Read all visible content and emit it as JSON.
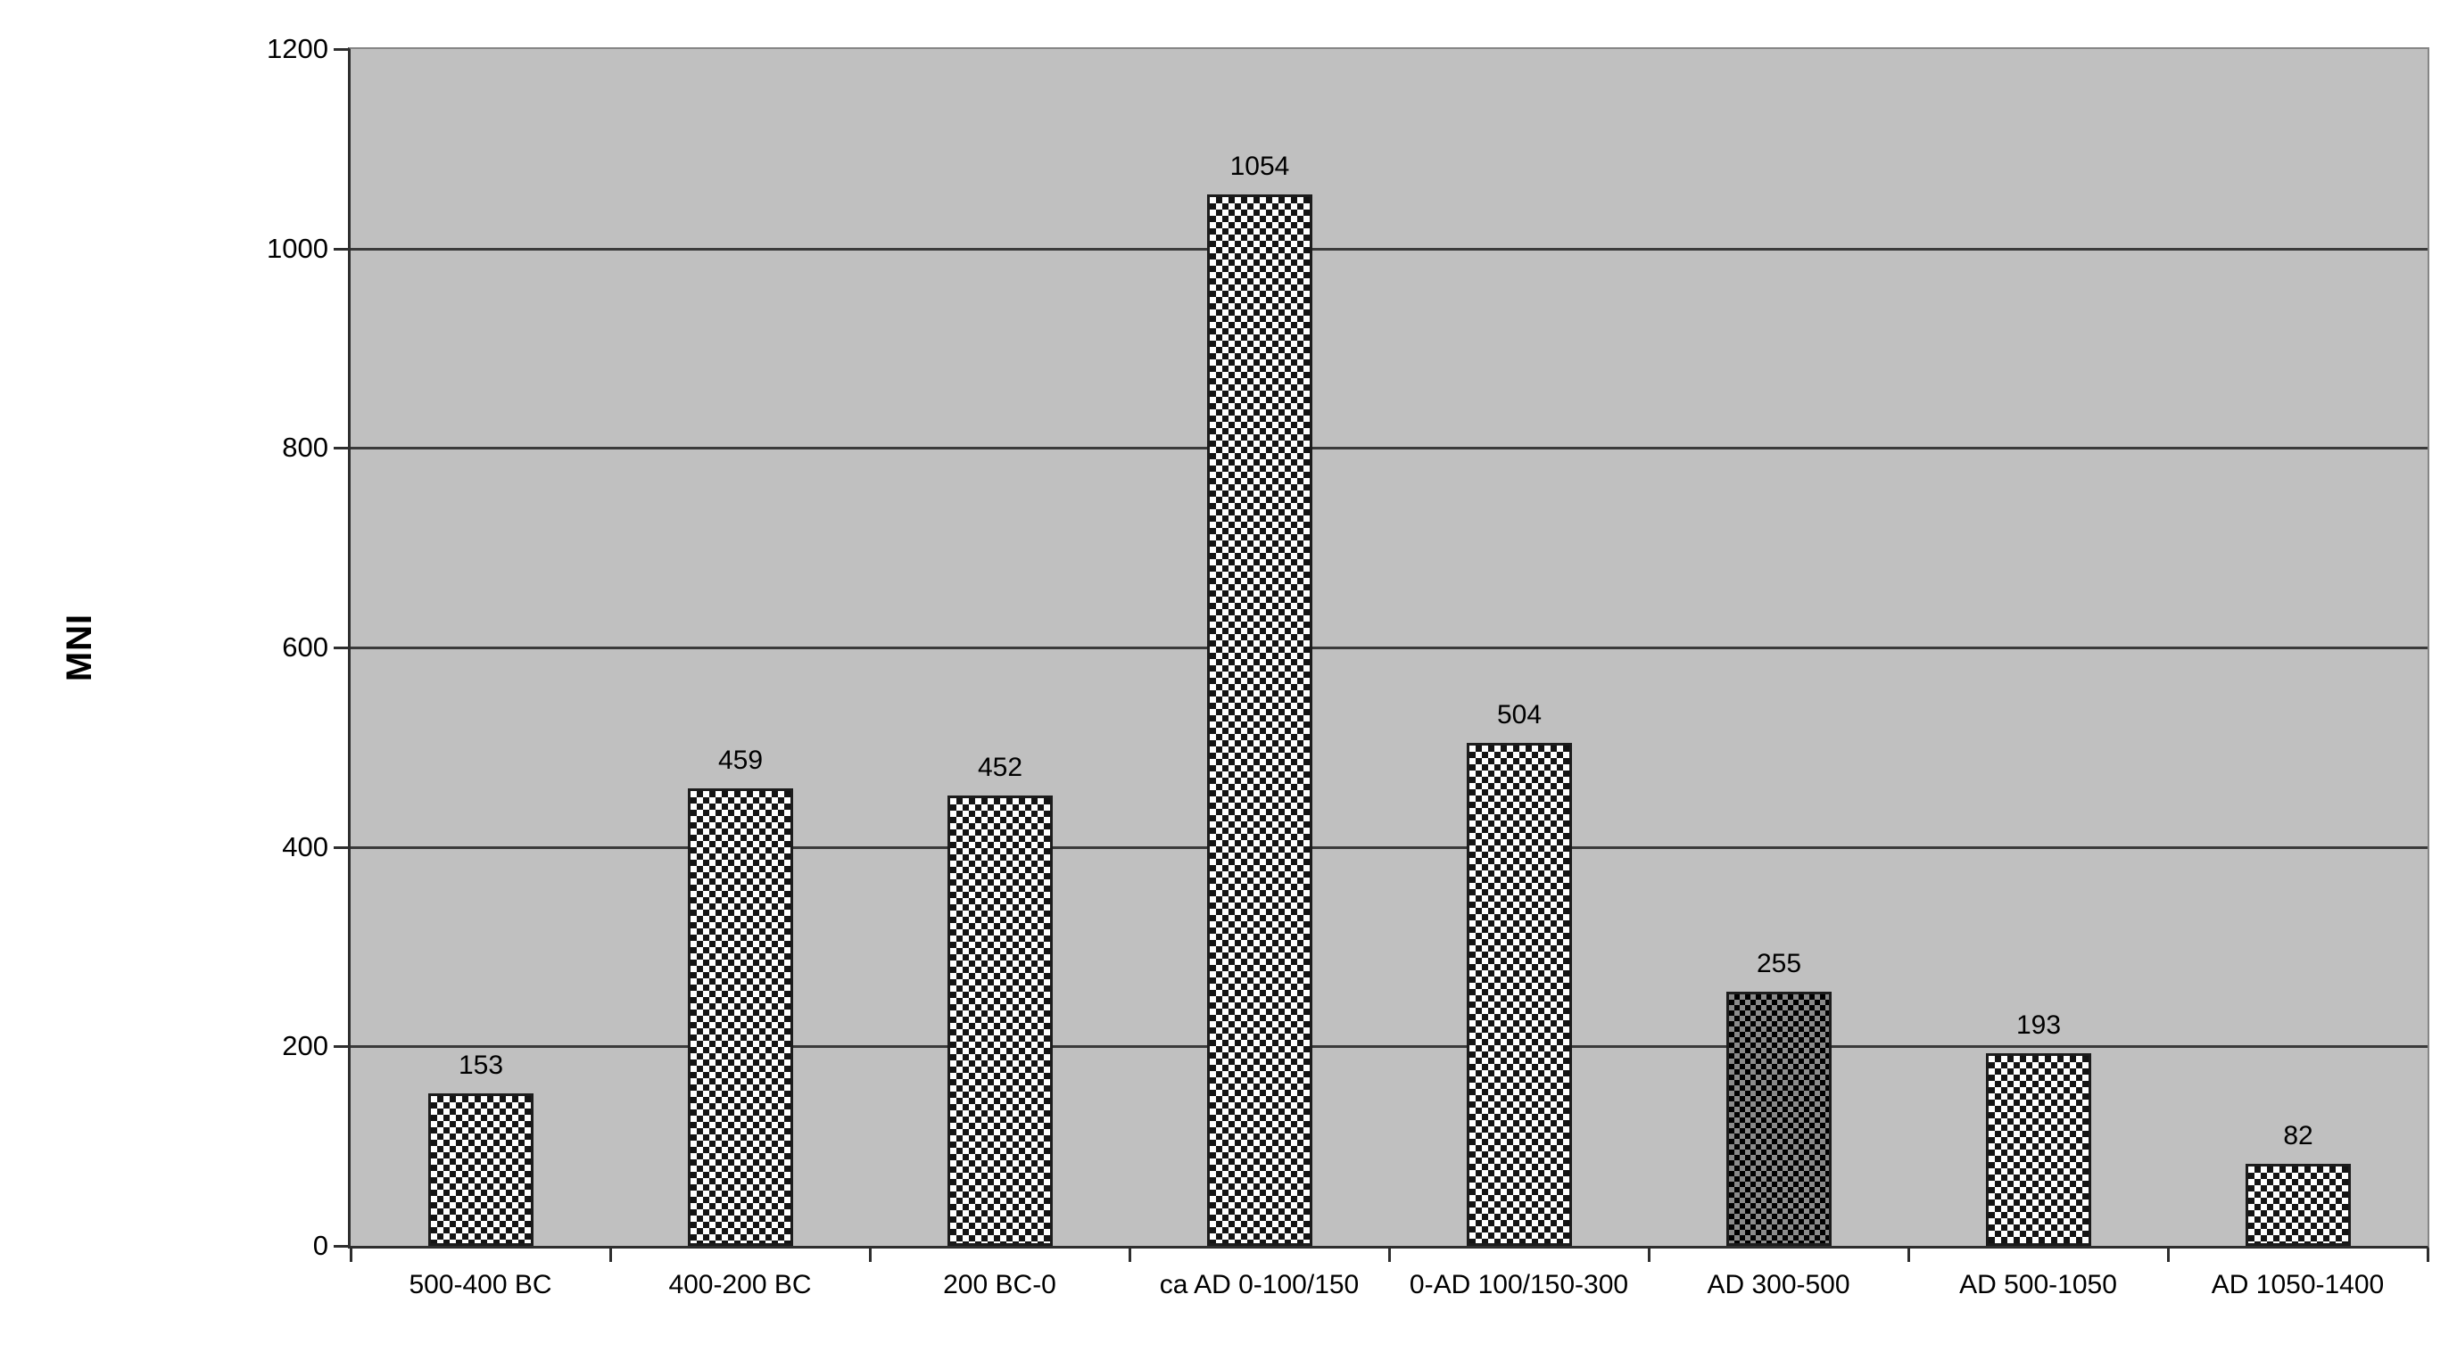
{
  "chart_data": {
    "type": "bar",
    "title": "",
    "xlabel": "",
    "ylabel": "MNI",
    "categories": [
      "500-400 BC",
      "400-200 BC",
      "200 BC-0",
      "ca AD 0-100/150",
      "0-AD 100/150-300",
      "AD 300-500",
      "AD 500-1050",
      "AD 1050-1400"
    ],
    "values": [
      153,
      459,
      452,
      1054,
      504,
      255,
      193,
      82
    ],
    "data_labels": [
      "153",
      "459",
      "452",
      "1054",
      "504",
      "255",
      "193",
      "82"
    ],
    "ylim": [
      0,
      1200
    ],
    "ytick_step": 200,
    "yticks": [
      0,
      200,
      400,
      600,
      800,
      1000,
      1200
    ],
    "grid": "horizontal",
    "legend": "none",
    "highlight_bar_index": 5,
    "colors": {
      "plot_background": "#c0c0c0",
      "outer_background": "#ffffff",
      "gridline": "#3a3a3a",
      "axis_line": "#2e2e2e",
      "plot_border": "#868686",
      "bar_border": "#1c1c1c",
      "bar_pattern_fg": "#141414",
      "bar_pattern_bg": "#ffffff",
      "highlight_pattern_fg": "#000000",
      "highlight_pattern_bg": "#8a8a8a",
      "text": "#000000"
    }
  }
}
